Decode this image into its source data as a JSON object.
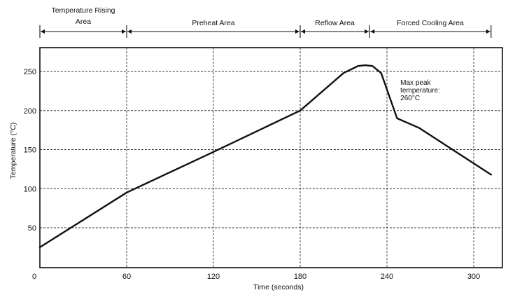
{
  "chart_data": {
    "type": "line",
    "title": "",
    "xlabel": "Time (seconds)",
    "ylabel": "Temperature (°C)",
    "xlim": [
      0,
      318
    ],
    "ylim": [
      0,
      280
    ],
    "x_ticks": [
      0,
      60,
      120,
      180,
      240,
      300
    ],
    "y_ticks": [
      50,
      100,
      150,
      200,
      250
    ],
    "x_tick_labels": [
      "0",
      "60",
      "120",
      "180",
      "240",
      "300"
    ],
    "y_tick_labels": [
      "50",
      "100",
      "150",
      "200",
      "250"
    ],
    "x_gridlines": [
      60,
      120,
      180,
      240,
      300
    ],
    "y_gridlines": [
      50,
      100,
      150,
      200,
      250
    ],
    "grid": true,
    "series": [
      {
        "name": "",
        "x": [
          0,
          60,
          120,
          180,
          210,
          220,
          225,
          230,
          236,
          247,
          262,
          312
        ],
        "y": [
          25,
          95,
          147,
          200,
          248,
          257,
          258,
          257,
          248,
          190,
          178,
          118
        ]
      }
    ],
    "zones": [
      {
        "label_lines": [
          "Temperature Rising",
          "Area"
        ],
        "start": 0,
        "end": 60
      },
      {
        "label_lines": [
          "Preheat Area"
        ],
        "start": 60,
        "end": 180
      },
      {
        "label_lines": [
          "Reflow Area"
        ],
        "start": 180,
        "end": 228
      },
      {
        "label_lines": [
          "Forced Cooling Area"
        ],
        "start": 228,
        "end": 312
      }
    ],
    "annotation": {
      "lines": [
        "Max  peak",
        "temperature:",
        "260°C"
      ],
      "x": 250,
      "y": 248
    }
  }
}
